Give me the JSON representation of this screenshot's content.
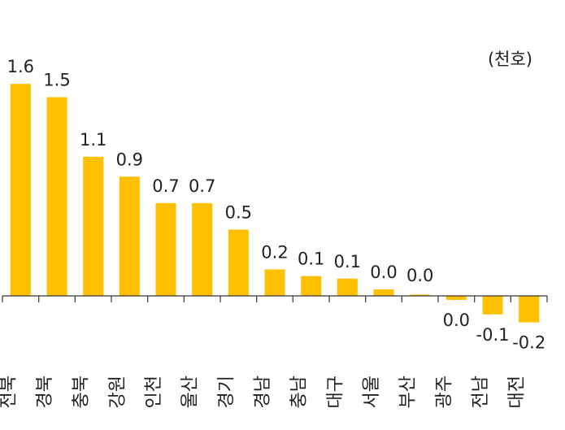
{
  "chart_data": {
    "type": "bar",
    "unit": "(천호)",
    "categories": [
      "전북",
      "경북",
      "충북",
      "강원",
      "인천",
      "울산",
      "경기",
      "경남",
      "충남",
      "대구",
      "서울",
      "부산",
      "광주",
      "전남",
      "대전"
    ],
    "values": [
      1.6,
      1.5,
      1.05,
      0.9,
      0.7,
      0.7,
      0.5,
      0.2,
      0.15,
      0.13,
      0.05,
      0.01,
      -0.03,
      -0.14,
      -0.2
    ],
    "value_labels": [
      "1.6",
      "1.5",
      "1.1",
      "0.9",
      "0.7",
      "0.7",
      "0.5",
      "0.2",
      "0.1",
      "0.1",
      "0.0",
      "0.0",
      "0.0",
      "-0.1",
      "-0.2"
    ],
    "ylim": [
      -0.35,
      1.85
    ],
    "grid": false,
    "legend": "none",
    "colors": {
      "bar": "#FFC000",
      "axis": "#333333",
      "text": "#222222"
    }
  }
}
